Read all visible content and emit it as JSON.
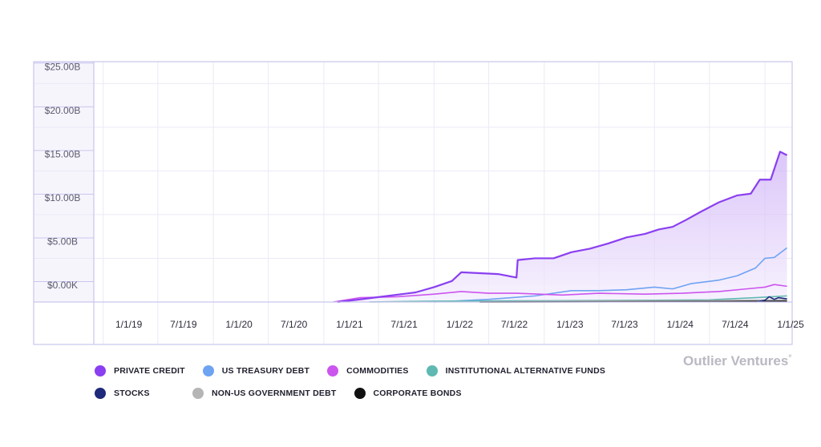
{
  "chart_data": {
    "type": "area",
    "x_ticks": [
      "1/1/19",
      "7/1/19",
      "1/1/20",
      "7/1/20",
      "1/1/21",
      "7/1/21",
      "1/1/22",
      "7/1/22",
      "1/1/23",
      "7/1/23",
      "1/1/24",
      "7/1/24",
      "1/1/25"
    ],
    "y_ticks": [
      "$0.00K",
      "$5.00B",
      "$10.00B",
      "$15.00B",
      "$20.00B",
      "$25.00B"
    ],
    "ylim": [
      0,
      27.5
    ],
    "xlim": [
      "2018-12-01",
      "2025-04-01"
    ],
    "grid": true,
    "stacked": false,
    "series": [
      {
        "name": "PRIVATE CREDIT",
        "color": "#8a3ff0",
        "points": [
          [
            "2021-02-15",
            0
          ],
          [
            "2021-05-01",
            0.3
          ],
          [
            "2021-08-01",
            0.7
          ],
          [
            "2021-11-01",
            1.1
          ],
          [
            "2022-01-01",
            1.7
          ],
          [
            "2022-03-01",
            2.4
          ],
          [
            "2022-04-01",
            3.4
          ],
          [
            "2022-06-01",
            3.3
          ],
          [
            "2022-08-01",
            3.2
          ],
          [
            "2022-10-01",
            2.8
          ],
          [
            "2022-10-05",
            4.8
          ],
          [
            "2022-12-01",
            5.0
          ],
          [
            "2023-02-01",
            5.0
          ],
          [
            "2023-04-01",
            5.7
          ],
          [
            "2023-06-01",
            6.1
          ],
          [
            "2023-08-01",
            6.7
          ],
          [
            "2023-10-01",
            7.4
          ],
          [
            "2023-12-01",
            7.8
          ],
          [
            "2024-01-15",
            8.3
          ],
          [
            "2024-03-01",
            8.6
          ],
          [
            "2024-04-15",
            9.4
          ],
          [
            "2024-06-01",
            10.3
          ],
          [
            "2024-08-01",
            11.4
          ],
          [
            "2024-10-01",
            12.2
          ],
          [
            "2024-11-15",
            12.4
          ],
          [
            "2024-12-15",
            14.0
          ],
          [
            "2025-01-20",
            14.0
          ],
          [
            "2025-02-20",
            17.2
          ],
          [
            "2025-03-15",
            16.8
          ]
        ]
      },
      {
        "name": "US TREASURY DEBT",
        "color": "#6ea3f2",
        "points": [
          [
            "2022-01-01",
            0
          ],
          [
            "2022-07-01",
            0.3
          ],
          [
            "2022-12-01",
            0.7
          ],
          [
            "2023-04-01",
            1.3
          ],
          [
            "2023-07-01",
            1.3
          ],
          [
            "2023-10-01",
            1.4
          ],
          [
            "2024-01-01",
            1.7
          ],
          [
            "2024-03-01",
            1.5
          ],
          [
            "2024-05-01",
            2.1
          ],
          [
            "2024-08-01",
            2.5
          ],
          [
            "2024-10-01",
            3.0
          ],
          [
            "2024-12-01",
            3.9
          ],
          [
            "2025-01-01",
            5.0
          ],
          [
            "2025-02-01",
            5.1
          ],
          [
            "2025-03-15",
            6.2
          ]
        ]
      },
      {
        "name": "COMMODITIES",
        "color": "#cc55ee",
        "points": [
          [
            "2021-02-01",
            0
          ],
          [
            "2021-05-01",
            0.5
          ],
          [
            "2021-09-01",
            0.6
          ],
          [
            "2022-01-01",
            0.9
          ],
          [
            "2022-04-01",
            1.2
          ],
          [
            "2022-07-01",
            1.0
          ],
          [
            "2022-10-01",
            1.0
          ],
          [
            "2023-03-01",
            0.8
          ],
          [
            "2023-07-01",
            1.0
          ],
          [
            "2023-12-01",
            0.9
          ],
          [
            "2024-04-01",
            1.0
          ],
          [
            "2024-08-01",
            1.2
          ],
          [
            "2024-11-01",
            1.5
          ],
          [
            "2025-01-01",
            1.7
          ],
          [
            "2025-02-01",
            2.0
          ],
          [
            "2025-03-15",
            1.8
          ]
        ]
      },
      {
        "name": "INSTITUTIONAL ALTERNATIVE FUNDS",
        "color": "#5fb8b2",
        "points": [
          [
            "2021-06-01",
            0
          ],
          [
            "2022-01-01",
            0.1
          ],
          [
            "2023-01-01",
            0.15
          ],
          [
            "2024-01-01",
            0.2
          ],
          [
            "2024-07-01",
            0.25
          ],
          [
            "2024-12-01",
            0.5
          ],
          [
            "2025-03-15",
            0.7
          ]
        ]
      },
      {
        "name": "STOCKS",
        "color": "#1f2a7a",
        "points": [
          [
            "2024-12-01",
            0
          ],
          [
            "2025-01-01",
            0.2
          ],
          [
            "2025-01-15",
            0.6
          ],
          [
            "2025-02-01",
            0.3
          ],
          [
            "2025-02-15",
            0.5
          ],
          [
            "2025-03-15",
            0.35
          ]
        ]
      },
      {
        "name": "NON-US GOVERNMENT DEBT",
        "color": "#b5b5b5",
        "points": [
          [
            "2022-06-01",
            0
          ],
          [
            "2023-06-01",
            0.1
          ],
          [
            "2024-06-01",
            0.15
          ],
          [
            "2025-03-15",
            0.25
          ]
        ]
      },
      {
        "name": "CORPORATE BONDS",
        "color": "#111111",
        "points": [
          [
            "2022-06-01",
            0
          ],
          [
            "2024-06-01",
            0.05
          ],
          [
            "2025-03-15",
            0.1
          ]
        ]
      }
    ]
  },
  "legend": {
    "rows": [
      [
        {
          "label": "PRIVATE CREDIT",
          "color": "#8a3ff0"
        },
        {
          "label": "US TREASURY DEBT",
          "color": "#6ea3f2"
        },
        {
          "label": "COMMODITIES",
          "color": "#cc55ee"
        },
        {
          "label": "INSTITUTIONAL ALTERNATIVE FUNDS",
          "color": "#5fb8b2"
        }
      ],
      [
        {
          "label": "STOCKS",
          "color": "#1f2a7a"
        },
        {
          "label": "NON-US GOVERNMENT DEBT",
          "color": "#b5b5b5"
        },
        {
          "label": "CORPORATE BONDS",
          "color": "#111111"
        }
      ]
    ]
  },
  "brand": {
    "text": "Outlier Ventures",
    "mark": "°"
  },
  "colors": {
    "frame": "#c9c6ec",
    "grid": "#ebe9f7",
    "yaxis_panel": "#f6f5fc",
    "area_fill_top": "#c8a6f6",
    "area_fill_bottom": "#f3ecfd"
  }
}
